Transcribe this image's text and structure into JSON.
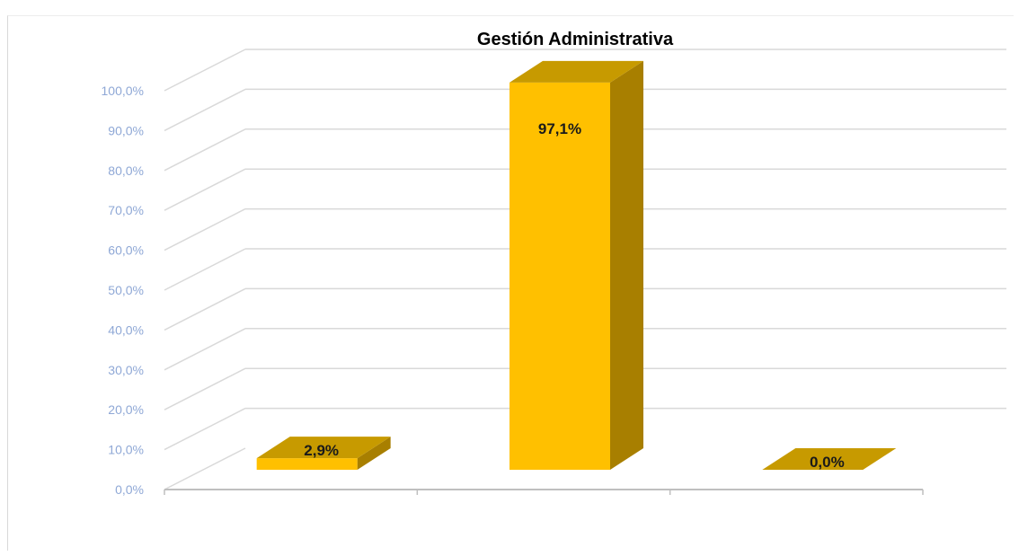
{
  "chart_data": {
    "type": "bar",
    "title": "Gestión Administrativa",
    "xlabel": "",
    "ylabel": "",
    "categories": [
      "",
      "",
      ""
    ],
    "values": [
      2.9,
      97.1,
      0.0
    ],
    "data_labels": [
      "2,9%",
      "97,1%",
      "0,0%"
    ],
    "ylim": [
      0,
      100
    ],
    "y_ticks": [
      0,
      10,
      20,
      30,
      40,
      50,
      60,
      70,
      80,
      90,
      100
    ],
    "y_tick_labels": [
      "0,0%",
      "10,0%",
      "20,0%",
      "30,0%",
      "40,0%",
      "50,0%",
      "60,0%",
      "70,0%",
      "80,0%",
      "90,0%",
      "100,0%"
    ],
    "grid": true,
    "legend": "none",
    "style": "3d-column",
    "colors": {
      "bar_front": "#ffc000",
      "bar_side": "#a87f00",
      "bar_top": "#c79a00",
      "gridline": "#d9d9d9",
      "axis": "#bfbfbf",
      "tick_label": "#8fa8d6",
      "title": "#8eaadb"
    }
  }
}
